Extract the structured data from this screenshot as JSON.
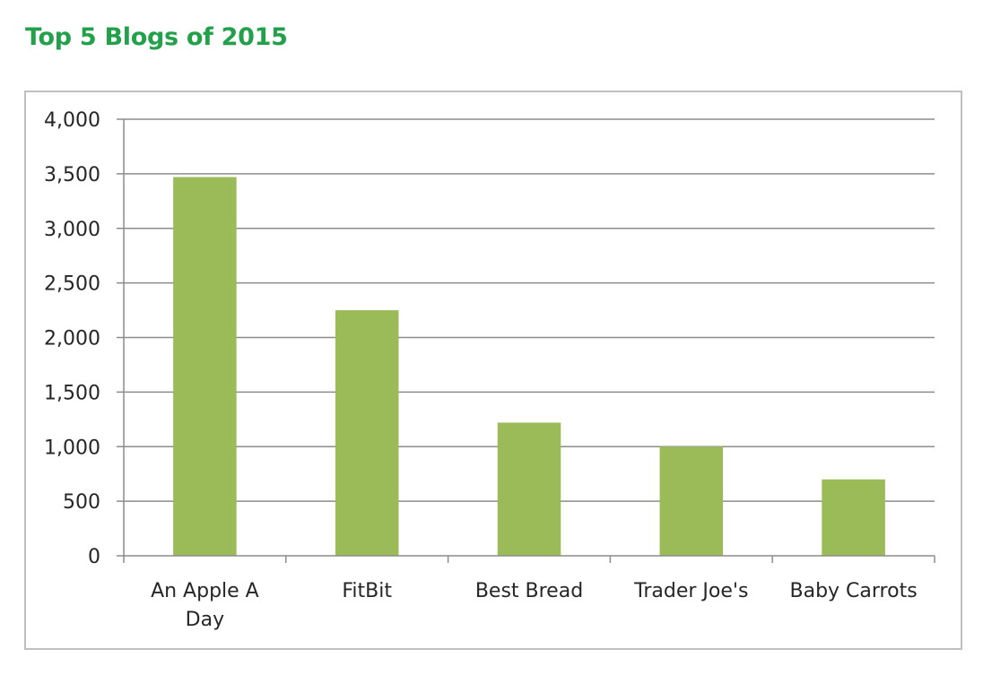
{
  "chart_data": {
    "type": "bar",
    "title": "Top 5 Blogs of 2015",
    "categories": [
      [
        "An Apple A",
        "Day"
      ],
      [
        "FitBit"
      ],
      [
        "Best Bread"
      ],
      [
        "Trader Joe's"
      ],
      [
        "Baby Carrots"
      ]
    ],
    "values": [
      3470,
      2250,
      1220,
      1000,
      700
    ],
    "ylim": [
      0,
      4000
    ],
    "yticks": [
      {
        "value": 0,
        "label": "0"
      },
      {
        "value": 500,
        "label": "500"
      },
      {
        "value": 1000,
        "label": "1,000"
      },
      {
        "value": 1500,
        "label": "1,500"
      },
      {
        "value": 2000,
        "label": "2,000"
      },
      {
        "value": 2500,
        "label": "2,500"
      },
      {
        "value": 3000,
        "label": "3,000"
      },
      {
        "value": 3500,
        "label": "3,500"
      },
      {
        "value": 4000,
        "label": "4,000"
      }
    ],
    "grid": true,
    "legend": "none",
    "colors": {
      "bar": "#9bbb59",
      "title": "#22a14a",
      "gridline": "#8c8c8c",
      "axis": "#8c8c8c",
      "frame": "#bfbfbf",
      "text": "#262626"
    }
  }
}
